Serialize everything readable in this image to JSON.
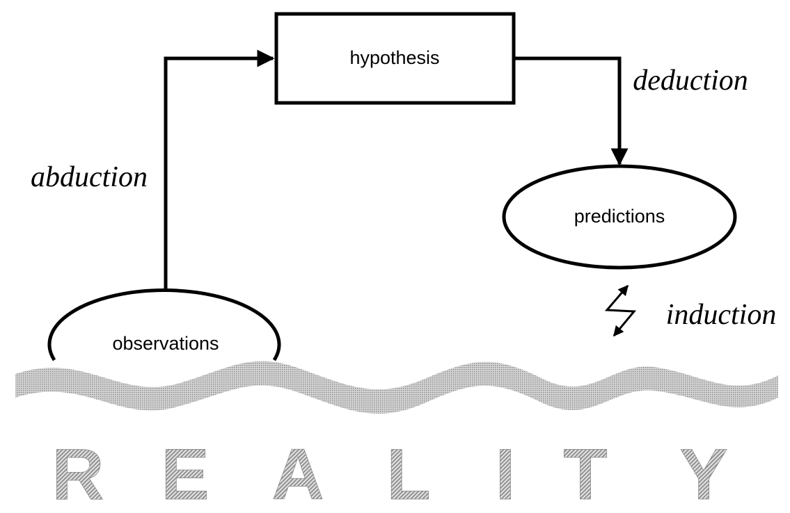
{
  "nodes": {
    "hypothesis": "hypothesis",
    "predictions": "predictions",
    "observations": "observations"
  },
  "edges": {
    "abduction": "abduction",
    "deduction": "deduction",
    "induction": "induction"
  },
  "reality": {
    "letters": [
      "R",
      "E",
      "A",
      "L",
      "I",
      "T",
      "Y"
    ]
  },
  "colors": {
    "ink": "#000000",
    "background": "#ffffff",
    "wave": "#b4b4b4",
    "lettering": "#9a9a9a"
  }
}
